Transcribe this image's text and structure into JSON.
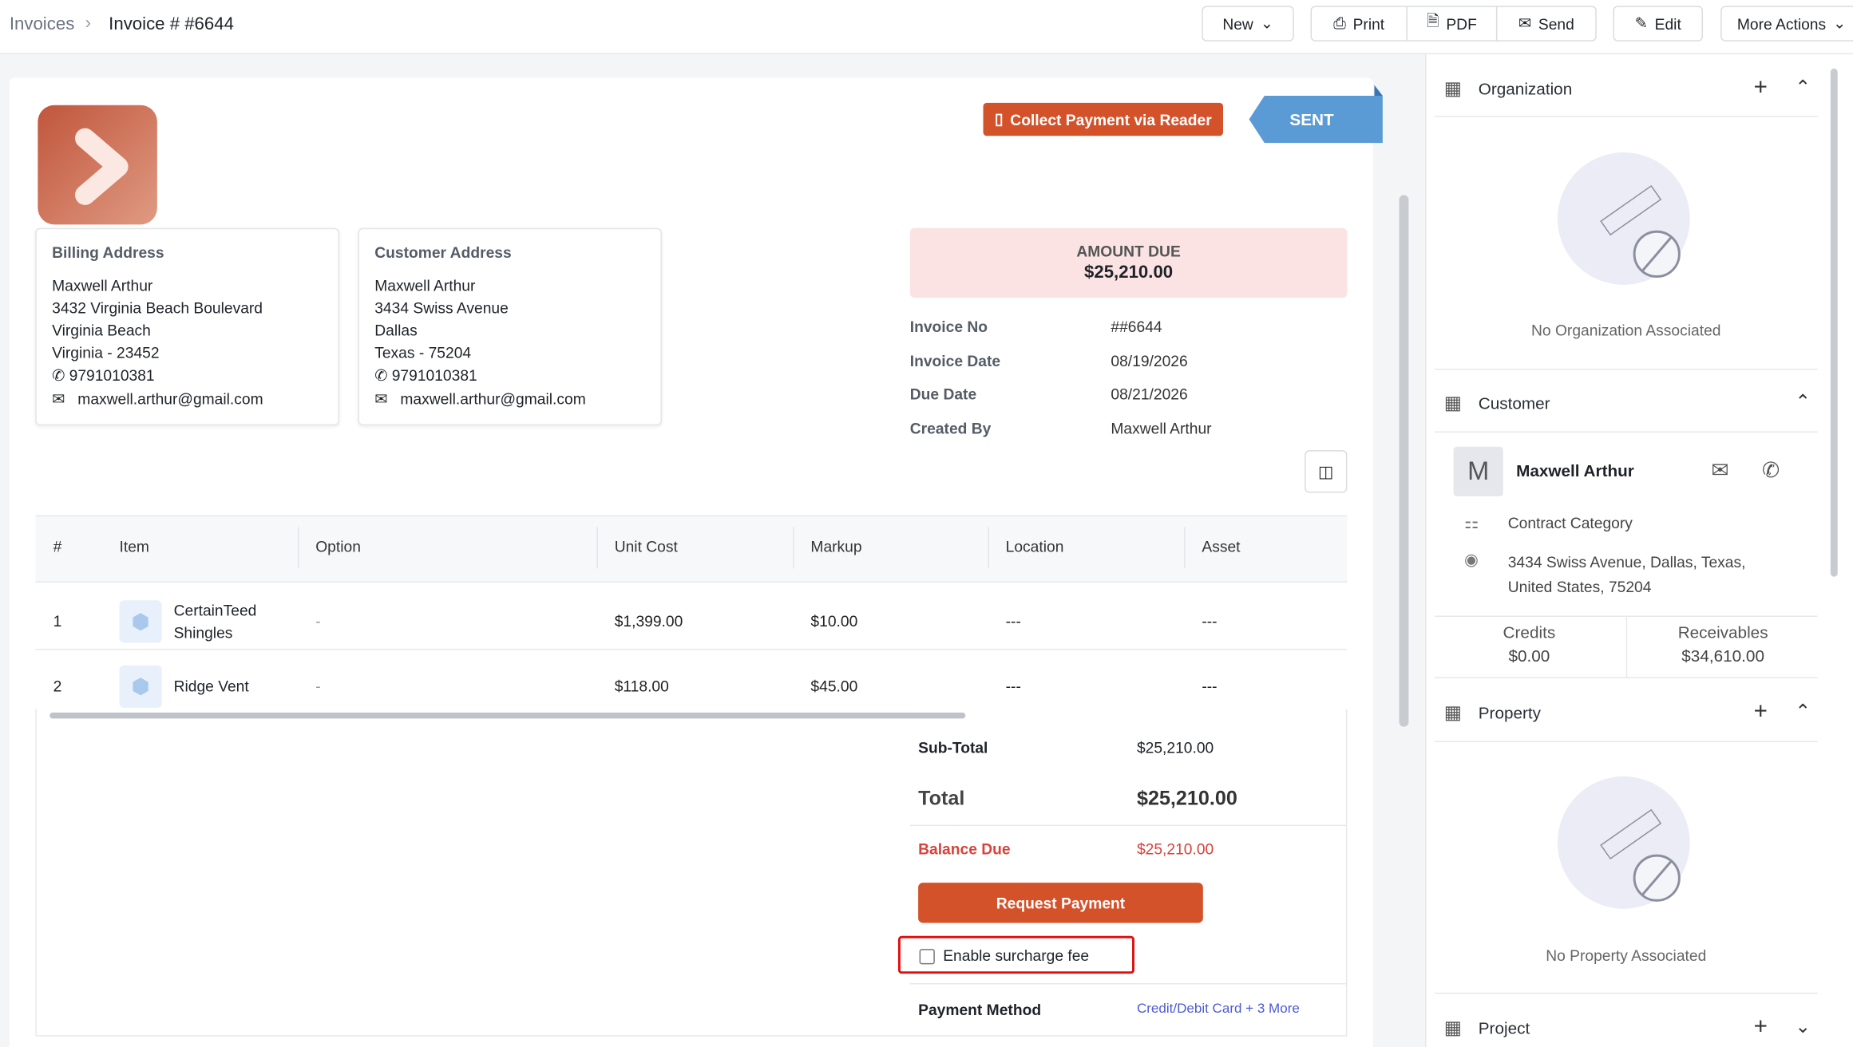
{
  "breadcrumb": {
    "parent": "Invoices",
    "current": "Invoice # #6644"
  },
  "toolbar": {
    "new": "New",
    "print": "Print",
    "pdf": "PDF",
    "send": "Send",
    "edit": "Edit",
    "more": "More Actions"
  },
  "invoice": {
    "collect_button": "Collect Payment via Reader",
    "status": "SENT",
    "billing": {
      "title": "Billing Address",
      "lines": [
        "Maxwell Arthur",
        "3432 Virginia Beach Boulevard",
        "Virginia Beach",
        "Virginia - 23452"
      ],
      "phone": "9791010381",
      "email": "maxwell.arthur@gmail.com"
    },
    "customer_address": {
      "title": "Customer Address",
      "lines": [
        "Maxwell Arthur",
        "3434 Swiss Avenue",
        "Dallas",
        "Texas - 75204"
      ],
      "phone": "9791010381",
      "email": "maxwell.arthur@gmail.com"
    },
    "amount_due": {
      "label": "AMOUNT DUE",
      "value": "$25,210.00"
    },
    "details": [
      [
        "Invoice No",
        "##6644"
      ],
      [
        "Invoice Date",
        "08/19/2026"
      ],
      [
        "Due Date",
        "08/21/2026"
      ],
      [
        "Created By",
        "Maxwell Arthur"
      ]
    ],
    "table": {
      "headers": [
        "#",
        "Item",
        "Option",
        "Unit Cost",
        "Markup",
        "Location",
        "Asset"
      ],
      "rows": [
        [
          "1",
          "CertainTeed Shingles",
          "-",
          "$1,399.00",
          "$10.00",
          "---",
          "---"
        ],
        [
          "2",
          "Ridge Vent",
          "-",
          "$118.00",
          "$45.00",
          "---",
          "---"
        ]
      ]
    },
    "totals": {
      "subtotal_label": "Sub-Total",
      "subtotal": "$25,210.00",
      "total_label": "Total",
      "total": "$25,210.00",
      "balance_label": "Balance Due",
      "balance": "$25,210.00",
      "request_button": "Request Payment",
      "surcharge": "Enable surcharge fee",
      "payment_method_label": "Payment Method",
      "payment_method": "Credit/Debit Card + 3 More"
    }
  },
  "sidebar": {
    "organization": {
      "title": "Organization",
      "empty": "No Organization Associated"
    },
    "customer": {
      "title": "Customer",
      "initial": "M",
      "name": "Maxwell Arthur",
      "category": "Contract Category",
      "address": "3434 Swiss Avenue, Dallas, Texas, United States, 75204",
      "credits_label": "Credits",
      "credits": "$0.00",
      "receivables_label": "Receivables",
      "receivables": "$34,610.00"
    },
    "property": {
      "title": "Property",
      "empty": "No Property Associated"
    },
    "project": {
      "title": "Project"
    }
  }
}
